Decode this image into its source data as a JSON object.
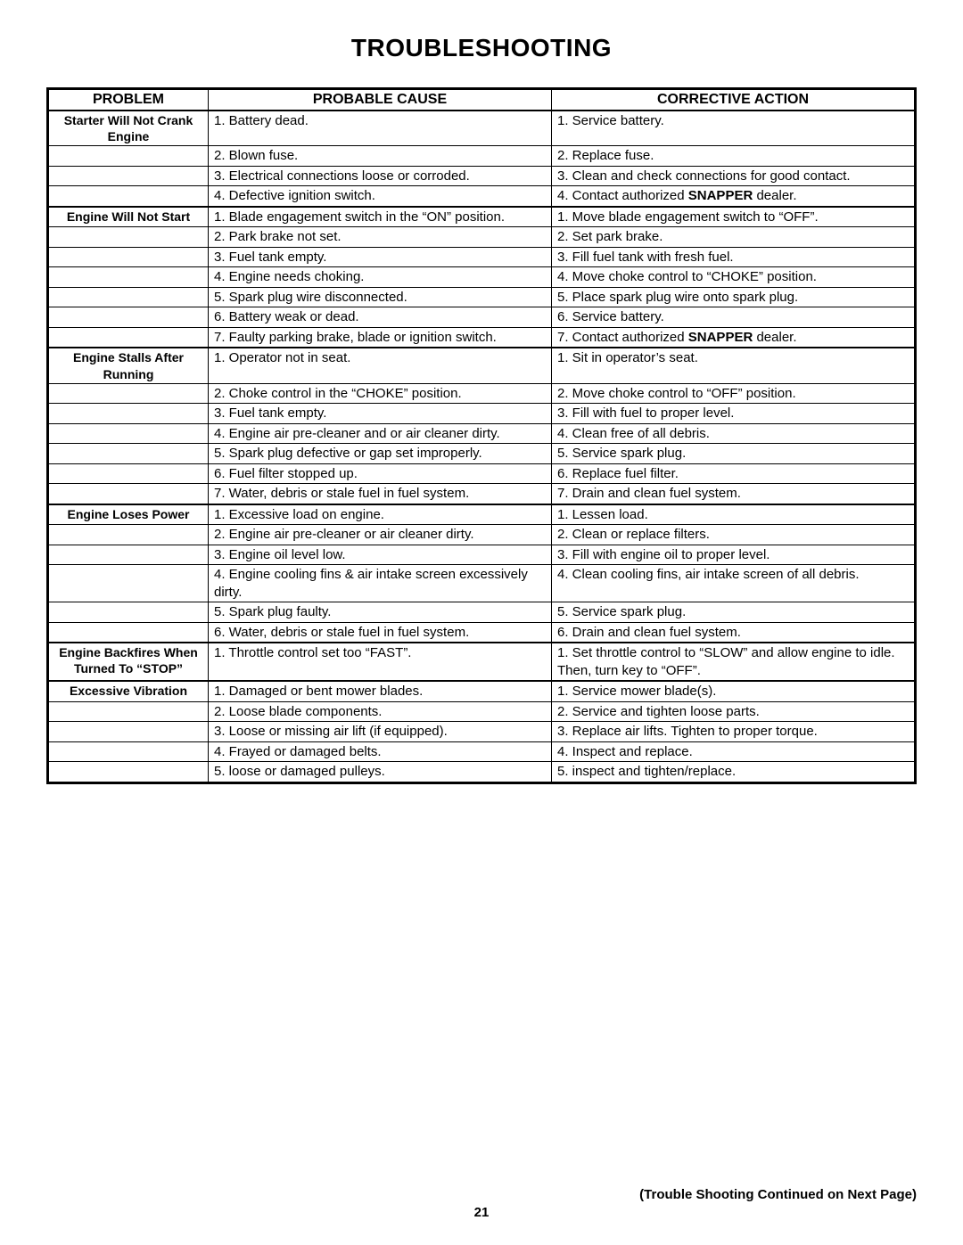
{
  "title": "TROUBLESHOOTING",
  "columns": [
    "PROBLEM",
    "PROBABLE CAUSE",
    "CORRECTIVE ACTION"
  ],
  "groups": [
    {
      "problem": "Starter Will Not Crank\nEngine",
      "rows": [
        {
          "cause": "1. Battery dead.",
          "action": "1. Service battery."
        },
        {
          "cause": "2. Blown fuse.",
          "action": "2. Replace fuse."
        },
        {
          "cause": "3. Electrical connections loose or corroded.",
          "action": "3. Clean and check connections for good contact."
        },
        {
          "cause": "4. Defective ignition switch.",
          "action_pre": "4. Contact authorized ",
          "action_bold": "SNAPPER",
          "action_post": " dealer."
        }
      ]
    },
    {
      "problem": "Engine Will Not Start",
      "rows": [
        {
          "cause": "1. Blade engagement switch in the “ON” position.",
          "action": "1. Move blade engagement switch to “OFF”."
        },
        {
          "cause": "2. Park brake not set.",
          "action": "2. Set park brake."
        },
        {
          "cause": "3. Fuel tank empty.",
          "action": "3. Fill fuel tank with fresh fuel."
        },
        {
          "cause": "4. Engine needs choking.",
          "action": "4. Move choke control to “CHOKE” position."
        },
        {
          "cause": "5. Spark plug wire disconnected.",
          "action": "5. Place spark plug wire onto spark plug."
        },
        {
          "cause": "6. Battery weak or dead.",
          "action": "6. Service battery."
        },
        {
          "cause": "7. Faulty parking brake, blade or ignition switch.",
          "action_pre": "7. Contact authorized ",
          "action_bold": "SNAPPER",
          "action_post": " dealer."
        }
      ]
    },
    {
      "problem": "Engine Stalls After\nRunning",
      "rows": [
        {
          "cause": "1. Operator not in seat.",
          "action": "1. Sit in operator’s seat."
        },
        {
          "cause": "2. Choke control in the “CHOKE” position.",
          "action": "2. Move choke control to “OFF” position."
        },
        {
          "cause": "3. Fuel tank empty.",
          "action": "3. Fill with fuel to proper level."
        },
        {
          "cause": "4. Engine air pre-cleaner and or air cleaner dirty.",
          "action": "4. Clean free of all debris."
        },
        {
          "cause": "5. Spark plug defective or gap set improperly.",
          "action": "5. Service spark plug."
        },
        {
          "cause": "6. Fuel filter stopped up.",
          "action": "6. Replace fuel filter."
        },
        {
          "cause": "7. Water, debris or stale fuel in fuel system.",
          "action": "7. Drain and clean fuel system."
        }
      ]
    },
    {
      "problem": "Engine Loses Power",
      "rows": [
        {
          "cause": "1. Excessive load on engine.",
          "action": "1. Lessen load."
        },
        {
          "cause": "2. Engine air pre-cleaner or air cleaner dirty.",
          "action": "2. Clean or replace filters."
        },
        {
          "cause": "3. Engine oil level low.",
          "action": "3. Fill with engine oil to proper level."
        },
        {
          "cause": "4. Engine cooling fins & air intake screen excessively dirty.",
          "action": "4. Clean cooling fins, air intake screen of all debris."
        },
        {
          "cause": "5. Spark plug faulty.",
          "action": "5. Service spark plug."
        },
        {
          "cause": "6. Water, debris or stale fuel in fuel system.",
          "action": "6. Drain and clean fuel system."
        }
      ]
    },
    {
      "problem": "Engine Backfires When\nTurned To “STOP”",
      "rows": [
        {
          "cause": "1. Throttle control set too “FAST”.",
          "action": "1. Set throttle control to “SLOW” and allow engine to idle.  Then, turn key to “OFF”."
        }
      ]
    },
    {
      "problem": "Excessive Vibration",
      "rows": [
        {
          "cause": "1. Damaged or bent mower blades.",
          "action": "1. Service mower blade(s)."
        },
        {
          "cause": "2. Loose blade components.",
          "action": "2. Service and tighten loose parts."
        },
        {
          "cause": "3. Loose or missing air lift (if equipped).",
          "action": "3. Replace air lifts.  Tighten to proper torque."
        },
        {
          "cause": "4. Frayed or damaged belts.",
          "action": "4. Inspect and replace."
        },
        {
          "cause": "5. loose or damaged pulleys.",
          "action": "5. inspect and tighten/replace."
        }
      ]
    }
  ],
  "footer_note": "(Trouble Shooting Continued on Next Page)",
  "page_number": "21"
}
